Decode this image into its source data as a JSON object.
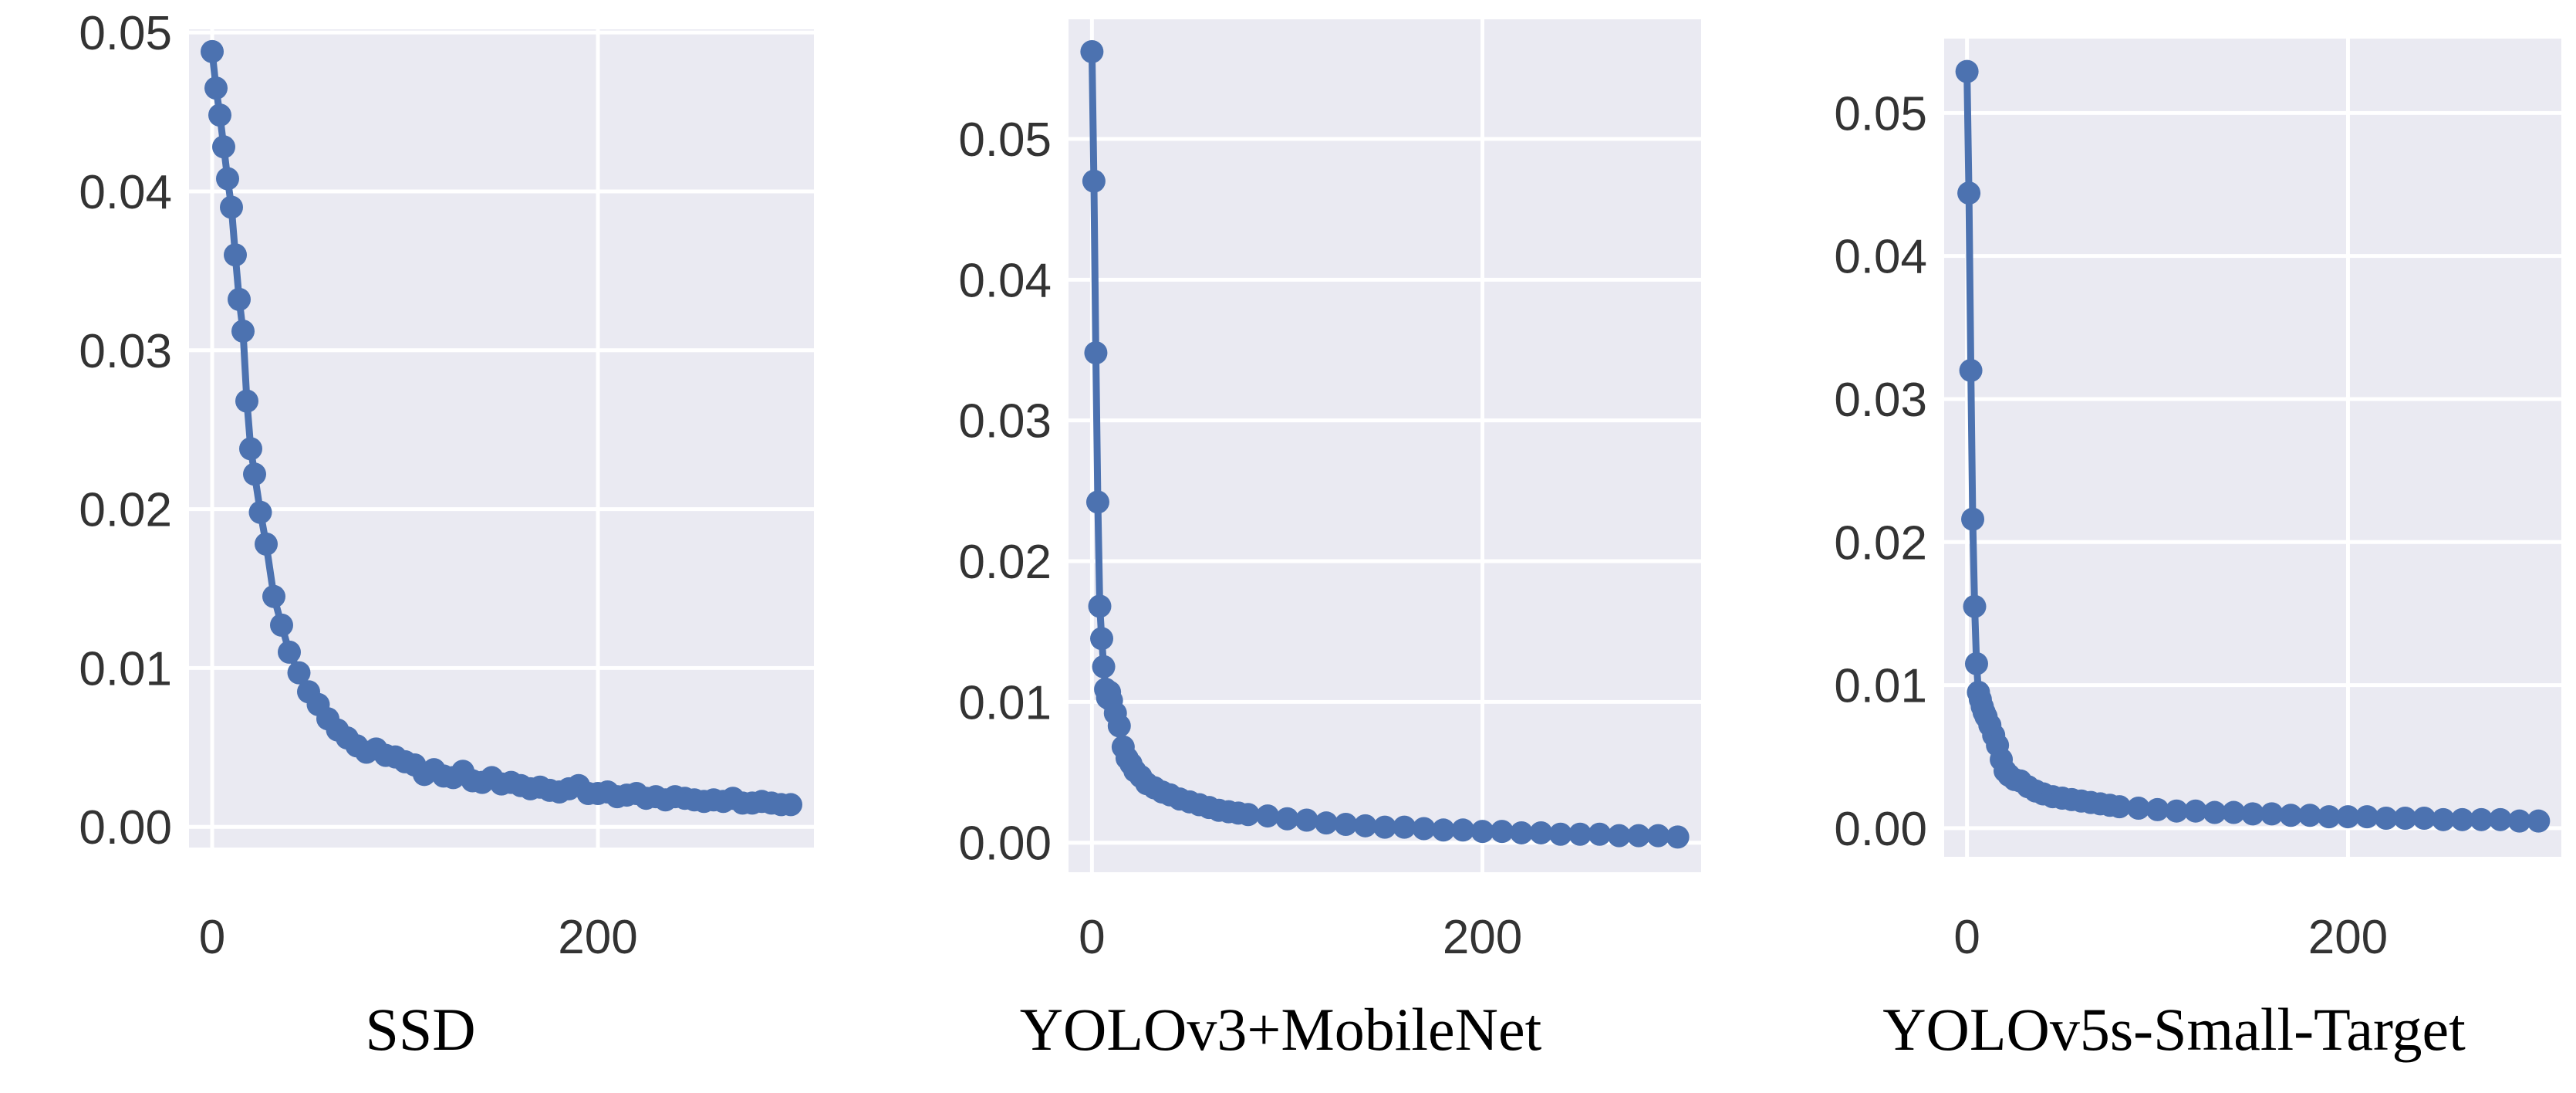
{
  "figure": {
    "background": "#ffffff",
    "plot_background": "#eaeaf2",
    "grid_color": "#ffffff",
    "series_color": "#4c72b0"
  },
  "chart_data": [
    {
      "type": "line",
      "caption": "SSD",
      "title": "",
      "xlabel": "",
      "ylabel": "",
      "grid": true,
      "marker": "circle",
      "xlim": [
        -12,
        312
      ],
      "ylim": [
        -0.0013,
        0.0502
      ],
      "xticks": [
        0,
        200
      ],
      "xtick_labels": [
        "0",
        "200"
      ],
      "yticks": [
        0,
        0.01,
        0.02,
        0.03,
        0.04,
        0.05
      ],
      "ytick_labels": [
        "0.00",
        "0.01",
        "0.02",
        "0.03",
        "0.04",
        "0.05"
      ],
      "series": [
        {
          "x": [
            0,
            2,
            4,
            6,
            8,
            10,
            12,
            14,
            16,
            18,
            20,
            22,
            25,
            28,
            32,
            36,
            40,
            45,
            50,
            55,
            60,
            65,
            70,
            75,
            80,
            85,
            90,
            95,
            100,
            105,
            110,
            115,
            120,
            125,
            130,
            135,
            140,
            145,
            150,
            155,
            160,
            165,
            170,
            175,
            180,
            185,
            190,
            195,
            200,
            205,
            210,
            215,
            220,
            225,
            230,
            235,
            240,
            245,
            250,
            255,
            260,
            265,
            270,
            275,
            280,
            285,
            290,
            295,
            300
          ],
          "y": [
            0.0488,
            0.0465,
            0.0448,
            0.0428,
            0.0408,
            0.039,
            0.036,
            0.0332,
            0.0312,
            0.0268,
            0.0238,
            0.0222,
            0.0198,
            0.0178,
            0.0145,
            0.0127,
            0.011,
            0.0097,
            0.0085,
            0.0077,
            0.0068,
            0.0061,
            0.0056,
            0.0051,
            0.0047,
            0.0049,
            0.0045,
            0.0044,
            0.0041,
            0.0039,
            0.0033,
            0.0036,
            0.0032,
            0.0031,
            0.0035,
            0.0029,
            0.0028,
            0.0031,
            0.0027,
            0.0028,
            0.0026,
            0.0024,
            0.0025,
            0.0023,
            0.0022,
            0.0024,
            0.0026,
            0.0021,
            0.0021,
            0.0022,
            0.0019,
            0.002,
            0.0021,
            0.0018,
            0.0019,
            0.0017,
            0.0019,
            0.0018,
            0.0017,
            0.0016,
            0.0017,
            0.0016,
            0.0018,
            0.0015,
            0.0015,
            0.0016,
            0.0015,
            0.0014,
            0.0014
          ]
        }
      ]
    },
    {
      "type": "line",
      "caption": "YOLOv3+MobileNet",
      "title": "",
      "xlabel": "",
      "ylabel": "",
      "grid": true,
      "marker": "circle",
      "xlim": [
        -12,
        312
      ],
      "ylim": [
        -0.0021,
        0.0585
      ],
      "xticks": [
        0,
        200
      ],
      "xtick_labels": [
        "0",
        "200"
      ],
      "yticks": [
        0,
        0.01,
        0.02,
        0.03,
        0.04,
        0.05
      ],
      "ytick_labels": [
        "0.00",
        "0.01",
        "0.02",
        "0.03",
        "0.04",
        "0.05"
      ],
      "series": [
        {
          "x": [
            0,
            1,
            2,
            3,
            4,
            5,
            6,
            7,
            8,
            9,
            10,
            12,
            14,
            16,
            18,
            20,
            22,
            25,
            28,
            32,
            36,
            40,
            45,
            50,
            55,
            60,
            65,
            70,
            75,
            80,
            90,
            100,
            110,
            120,
            130,
            140,
            150,
            160,
            170,
            180,
            190,
            200,
            210,
            220,
            230,
            240,
            250,
            260,
            270,
            280,
            290,
            300
          ],
          "y": [
            0.0562,
            0.047,
            0.0348,
            0.0242,
            0.0168,
            0.0145,
            0.0125,
            0.0109,
            0.0103,
            0.0107,
            0.0101,
            0.0092,
            0.0083,
            0.0068,
            0.006,
            0.0056,
            0.0051,
            0.0047,
            0.0042,
            0.0039,
            0.0036,
            0.0034,
            0.0031,
            0.0029,
            0.0027,
            0.0025,
            0.0023,
            0.0022,
            0.0021,
            0.002,
            0.0019,
            0.0017,
            0.0016,
            0.0014,
            0.0013,
            0.0012,
            0.0011,
            0.0011,
            0.001,
            0.0009,
            0.0009,
            0.0008,
            0.0008,
            0.0007,
            0.0007,
            0.0006,
            0.0006,
            0.0006,
            0.0005,
            0.0005,
            0.0005,
            0.0004
          ]
        }
      ]
    },
    {
      "type": "line",
      "caption": "YOLOv5s-Small-Target",
      "title": "",
      "xlabel": "",
      "ylabel": "",
      "grid": true,
      "marker": "circle",
      "xlim": [
        -12,
        312
      ],
      "ylim": [
        -0.002,
        0.0552
      ],
      "xticks": [
        0,
        200
      ],
      "xtick_labels": [
        "0",
        "200"
      ],
      "yticks": [
        0,
        0.01,
        0.02,
        0.03,
        0.04,
        0.05
      ],
      "ytick_labels": [
        "0.00",
        "0.01",
        "0.02",
        "0.03",
        "0.04",
        "0.05"
      ],
      "series": [
        {
          "x": [
            0,
            1,
            2,
            3,
            4,
            5,
            6,
            7,
            8,
            9,
            10,
            12,
            14,
            16,
            18,
            20,
            22,
            25,
            28,
            32,
            36,
            40,
            45,
            50,
            55,
            60,
            65,
            70,
            75,
            80,
            90,
            100,
            110,
            120,
            130,
            140,
            150,
            160,
            170,
            180,
            190,
            200,
            210,
            220,
            230,
            240,
            250,
            260,
            270,
            280,
            290,
            300
          ],
          "y": [
            0.0529,
            0.0444,
            0.032,
            0.0216,
            0.0155,
            0.0115,
            0.0095,
            0.009,
            0.0085,
            0.0081,
            0.0078,
            0.0072,
            0.0065,
            0.0058,
            0.0048,
            0.004,
            0.0037,
            0.0034,
            0.0033,
            0.0029,
            0.0026,
            0.0024,
            0.0022,
            0.0021,
            0.002,
            0.0019,
            0.0018,
            0.0017,
            0.0016,
            0.0015,
            0.0014,
            0.0013,
            0.0012,
            0.0012,
            0.0011,
            0.0011,
            0.001,
            0.001,
            0.0009,
            0.0009,
            0.0008,
            0.0008,
            0.0008,
            0.0007,
            0.0007,
            0.0007,
            0.0006,
            0.0006,
            0.0006,
            0.0006,
            0.0005,
            0.0005
          ]
        }
      ]
    }
  ]
}
